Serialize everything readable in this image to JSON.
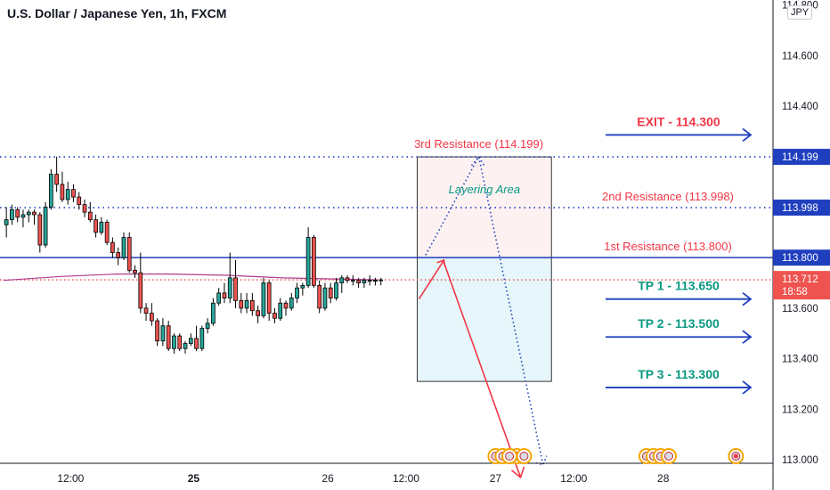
{
  "header": {
    "title": "U.S. Dollar / Japanese Yen, 1h, FXCM",
    "currency_badge": "JPY"
  },
  "chart_data": {
    "type": "candlestick",
    "symbol": "USDJPY",
    "timeframe": "1h",
    "broker": "FXCM",
    "price_axis": {
      "ticks": [
        "114.800",
        "114.600",
        "114.400",
        "114.200",
        "114.000",
        "113.800",
        "113.600",
        "113.400",
        "113.200",
        "113.000"
      ],
      "tick_values": [
        114.8,
        114.6,
        114.4,
        114.2,
        114.0,
        113.8,
        113.6,
        113.4,
        113.2,
        113.0
      ],
      "ylim": [
        112.88,
        114.82
      ]
    },
    "time_axis": {
      "ticks": [
        {
          "label": "12:00",
          "bold": false,
          "bar": 12
        },
        {
          "label": "25",
          "bold": true,
          "bar": 34
        },
        {
          "label": "26",
          "bold": false,
          "bar": 58
        },
        {
          "label": "12:00",
          "bold": false,
          "bar": 72
        },
        {
          "label": "27",
          "bold": false,
          "bar": 88
        },
        {
          "label": "12:00",
          "bold": false,
          "bar": 102
        },
        {
          "label": "28",
          "bold": false,
          "bar": 118
        }
      ],
      "bar_range": [
        0,
        137
      ]
    },
    "candles": [
      {
        "o": 113.93,
        "h": 114.0,
        "l": 113.88,
        "c": 113.95
      },
      {
        "o": 113.95,
        "h": 114.01,
        "l": 113.93,
        "c": 113.99
      },
      {
        "o": 113.99,
        "h": 114.0,
        "l": 113.94,
        "c": 113.96
      },
      {
        "o": 113.96,
        "h": 113.99,
        "l": 113.92,
        "c": 113.97
      },
      {
        "o": 113.97,
        "h": 113.99,
        "l": 113.94,
        "c": 113.98
      },
      {
        "o": 113.98,
        "h": 113.99,
        "l": 113.93,
        "c": 113.97
      },
      {
        "o": 113.97,
        "h": 113.98,
        "l": 113.82,
        "c": 113.85
      },
      {
        "o": 113.85,
        "h": 114.02,
        "l": 113.84,
        "c": 114.0
      },
      {
        "o": 114.0,
        "h": 114.15,
        "l": 113.99,
        "c": 114.13
      },
      {
        "o": 114.13,
        "h": 114.2,
        "l": 114.06,
        "c": 114.09
      },
      {
        "o": 114.09,
        "h": 114.14,
        "l": 114.02,
        "c": 114.03
      },
      {
        "o": 114.03,
        "h": 114.1,
        "l": 114.01,
        "c": 114.07
      },
      {
        "o": 114.07,
        "h": 114.09,
        "l": 114.02,
        "c": 114.04
      },
      {
        "o": 114.04,
        "h": 114.06,
        "l": 113.99,
        "c": 114.01
      },
      {
        "o": 114.01,
        "h": 114.03,
        "l": 113.96,
        "c": 113.98
      },
      {
        "o": 113.98,
        "h": 114.02,
        "l": 113.94,
        "c": 113.95
      },
      {
        "o": 113.95,
        "h": 113.97,
        "l": 113.88,
        "c": 113.9
      },
      {
        "o": 113.9,
        "h": 113.96,
        "l": 113.89,
        "c": 113.94
      },
      {
        "o": 113.94,
        "h": 113.95,
        "l": 113.85,
        "c": 113.86
      },
      {
        "o": 113.86,
        "h": 113.88,
        "l": 113.8,
        "c": 113.82
      },
      {
        "o": 113.82,
        "h": 113.84,
        "l": 113.77,
        "c": 113.8
      },
      {
        "o": 113.8,
        "h": 113.9,
        "l": 113.79,
        "c": 113.88
      },
      {
        "o": 113.88,
        "h": 113.9,
        "l": 113.74,
        "c": 113.75
      },
      {
        "o": 113.75,
        "h": 113.77,
        "l": 113.72,
        "c": 113.74
      },
      {
        "o": 113.74,
        "h": 113.82,
        "l": 113.58,
        "c": 113.6
      },
      {
        "o": 113.6,
        "h": 113.62,
        "l": 113.55,
        "c": 113.58
      },
      {
        "o": 113.58,
        "h": 113.62,
        "l": 113.53,
        "c": 113.55
      },
      {
        "o": 113.55,
        "h": 113.56,
        "l": 113.45,
        "c": 113.47
      },
      {
        "o": 113.47,
        "h": 113.56,
        "l": 113.45,
        "c": 113.53
      },
      {
        "o": 113.53,
        "h": 113.55,
        "l": 113.43,
        "c": 113.44
      },
      {
        "o": 113.44,
        "h": 113.5,
        "l": 113.42,
        "c": 113.49
      },
      {
        "o": 113.49,
        "h": 113.5,
        "l": 113.43,
        "c": 113.44
      },
      {
        "o": 113.44,
        "h": 113.47,
        "l": 113.42,
        "c": 113.46
      },
      {
        "o": 113.46,
        "h": 113.5,
        "l": 113.45,
        "c": 113.48
      },
      {
        "o": 113.48,
        "h": 113.53,
        "l": 113.43,
        "c": 113.44
      },
      {
        "o": 113.44,
        "h": 113.53,
        "l": 113.43,
        "c": 113.52
      },
      {
        "o": 113.52,
        "h": 113.56,
        "l": 113.5,
        "c": 113.54
      },
      {
        "o": 113.54,
        "h": 113.64,
        "l": 113.53,
        "c": 113.62
      },
      {
        "o": 113.62,
        "h": 113.68,
        "l": 113.61,
        "c": 113.66
      },
      {
        "o": 113.66,
        "h": 113.7,
        "l": 113.62,
        "c": 113.64
      },
      {
        "o": 113.64,
        "h": 113.82,
        "l": 113.62,
        "c": 113.72
      },
      {
        "o": 113.72,
        "h": 113.79,
        "l": 113.6,
        "c": 113.63
      },
      {
        "o": 113.63,
        "h": 113.66,
        "l": 113.58,
        "c": 113.6
      },
      {
        "o": 113.6,
        "h": 113.66,
        "l": 113.58,
        "c": 113.63
      },
      {
        "o": 113.63,
        "h": 113.66,
        "l": 113.57,
        "c": 113.59
      },
      {
        "o": 113.59,
        "h": 113.61,
        "l": 113.54,
        "c": 113.57
      },
      {
        "o": 113.57,
        "h": 113.72,
        "l": 113.56,
        "c": 113.7
      },
      {
        "o": 113.7,
        "h": 113.71,
        "l": 113.55,
        "c": 113.58
      },
      {
        "o": 113.58,
        "h": 113.6,
        "l": 113.54,
        "c": 113.56
      },
      {
        "o": 113.56,
        "h": 113.64,
        "l": 113.55,
        "c": 113.62
      },
      {
        "o": 113.62,
        "h": 113.63,
        "l": 113.57,
        "c": 113.6
      },
      {
        "o": 113.6,
        "h": 113.66,
        "l": 113.59,
        "c": 113.64
      },
      {
        "o": 113.64,
        "h": 113.7,
        "l": 113.62,
        "c": 113.68
      },
      {
        "o": 113.68,
        "h": 113.7,
        "l": 113.65,
        "c": 113.69
      },
      {
        "o": 113.69,
        "h": 113.92,
        "l": 113.68,
        "c": 113.88
      },
      {
        "o": 113.88,
        "h": 113.89,
        "l": 113.68,
        "c": 113.69
      },
      {
        "o": 113.69,
        "h": 113.71,
        "l": 113.58,
        "c": 113.6
      },
      {
        "o": 113.6,
        "h": 113.7,
        "l": 113.59,
        "c": 113.68
      },
      {
        "o": 113.68,
        "h": 113.7,
        "l": 113.62,
        "c": 113.64
      },
      {
        "o": 113.64,
        "h": 113.72,
        "l": 113.63,
        "c": 113.7
      },
      {
        "o": 113.7,
        "h": 113.73,
        "l": 113.66,
        "c": 113.72
      },
      {
        "o": 113.72,
        "h": 113.73,
        "l": 113.7,
        "c": 113.71
      },
      {
        "o": 113.71,
        "h": 113.73,
        "l": 113.69,
        "c": 113.71
      },
      {
        "o": 113.71,
        "h": 113.72,
        "l": 113.68,
        "c": 113.7
      },
      {
        "o": 113.7,
        "h": 113.72,
        "l": 113.68,
        "c": 113.71
      },
      {
        "o": 113.71,
        "h": 113.73,
        "l": 113.69,
        "c": 113.71
      },
      {
        "o": 113.71,
        "h": 113.72,
        "l": 113.69,
        "c": 113.71
      },
      {
        "o": 113.71,
        "h": 113.72,
        "l": 113.69,
        "c": 113.712
      }
    ],
    "candle_bar_offset": 0,
    "moving_average": {
      "color": "#b03a8c",
      "bars": [
        0,
        10,
        20,
        30,
        40,
        50,
        60,
        67
      ],
      "values": [
        113.71,
        113.725,
        113.735,
        113.735,
        113.73,
        113.72,
        113.715,
        113.712
      ]
    },
    "levels": [
      {
        "name": "resistance-3",
        "value": 114.199,
        "style": "dotted",
        "color": "#1f3fbf",
        "axis_label": "114.199"
      },
      {
        "name": "resistance-2",
        "value": 113.998,
        "style": "dotted",
        "color": "#1f3fbf",
        "axis_label": "113.998"
      },
      {
        "name": "resistance-1",
        "value": 113.8,
        "style": "solid",
        "color": "#1f3fbf",
        "axis_label": "113.800"
      },
      {
        "name": "current-price",
        "value": 113.712,
        "style": "dotted",
        "color": "#ef5350",
        "axis_label": "113.712",
        "countdown": "18:58"
      }
    ],
    "annotations": {
      "resistance_labels": [
        {
          "text": "3rd Resistance (114.199)",
          "value": 114.199
        },
        {
          "text": "2nd Resistance (113.998)",
          "value": 113.998
        },
        {
          "text": "1st Resistance (113.800)",
          "value": 113.8
        }
      ],
      "layering_area": "Layering Area",
      "targets": [
        {
          "text": "EXIT - 114.300",
          "value": 114.3,
          "color": "#f23645"
        },
        {
          "text": "TP 1 - 113.650",
          "value": 113.65,
          "color": "#089981"
        },
        {
          "text": "TP 2 - 113.500",
          "value": 113.5,
          "color": "#089981"
        },
        {
          "text": "TP 3 - 113.300",
          "value": 113.3,
          "color": "#089981"
        }
      ],
      "position_box": {
        "bars": [
          74,
          98
        ],
        "top": 114.199,
        "entry": 113.8,
        "bottom": 113.31
      }
    },
    "colors": {
      "up": "#26a69a",
      "down": "#ef5350",
      "wick": "#000000",
      "level": "#1f3fbf",
      "arrow_down": "#f23645",
      "target_arrow": "#1f3fbf",
      "stop_fill": "#fdf1f2",
      "target_fill": "#e6f6fa",
      "label_text": "#f23645",
      "layering_text": "#089981"
    },
    "event_markers": {
      "groups": [
        {
          "bar": 88,
          "count": 5
        },
        {
          "bar": 90.5,
          "count": 1
        },
        {
          "bar": 115,
          "count": 3
        },
        {
          "bar": 119,
          "count": 1
        },
        {
          "bar": 131,
          "count": 1
        }
      ]
    }
  }
}
